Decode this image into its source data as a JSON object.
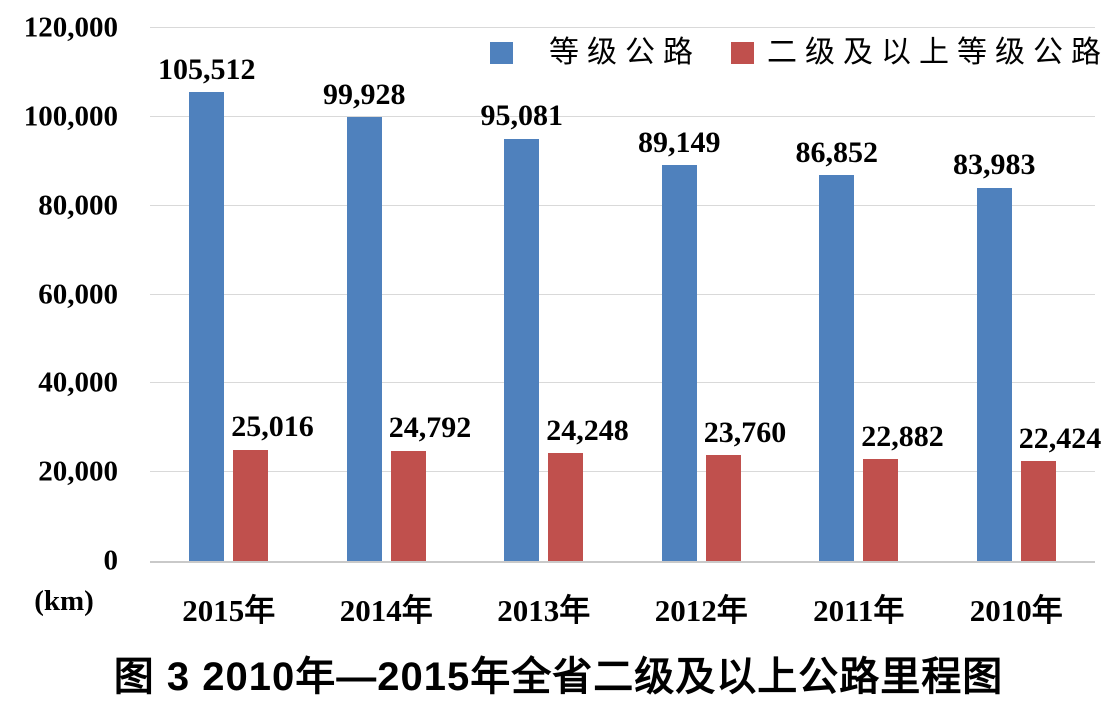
{
  "figure": {
    "caption": "图 3  2010年—2015年全省二级及以上公路里程图"
  },
  "chart_data": {
    "type": "bar",
    "title": "图 3  2010年—2015年全省二级及以上公路里程图",
    "categories": [
      "2015年",
      "2014年",
      "2013年",
      "2012年",
      "2011年",
      "2010年"
    ],
    "series": [
      {
        "name": "等级公路",
        "color": "#4F81BD",
        "values": [
          105512,
          99928,
          95081,
          89149,
          86852,
          83983
        ],
        "value_labels": [
          "105,512",
          "99,928",
          "95,081",
          "89,149",
          "86,852",
          "83,983"
        ]
      },
      {
        "name": "二级及以上等级公路",
        "color": "#C0504D",
        "values": [
          25016,
          24792,
          24248,
          23760,
          22882,
          22424
        ],
        "value_labels": [
          "25,016",
          "24,792",
          "24,248",
          "23,760",
          "22,882",
          "22,424"
        ]
      }
    ],
    "xlabel": "",
    "ylabel": "(km)",
    "ylim": [
      0,
      120000
    ],
    "yticks": [
      0,
      20000,
      40000,
      60000,
      80000,
      100000,
      120000
    ],
    "ytick_labels": [
      "0",
      "20,000",
      "40,000",
      "60,000",
      "80,000",
      "100,000",
      "120,000"
    ],
    "grid": true,
    "legend_position": "top",
    "gridline_color": "#D9D9D9",
    "axis_line_color": "#C9C9C9",
    "text_color": "#000000"
  }
}
